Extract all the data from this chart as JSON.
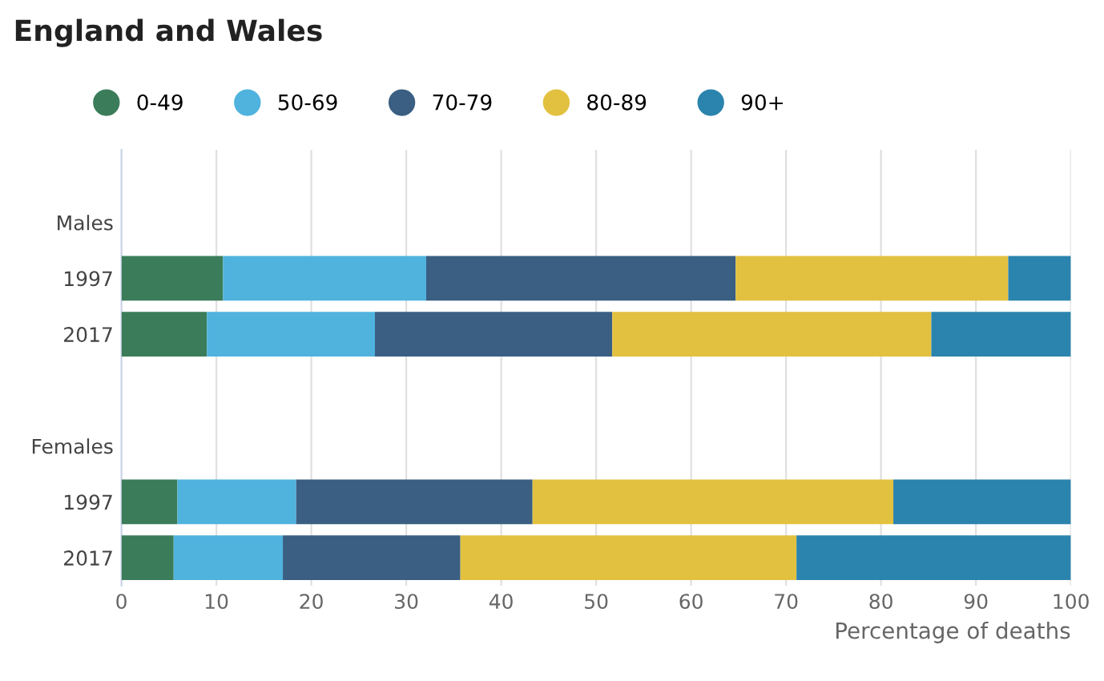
{
  "chart_data": {
    "type": "bar",
    "title": "England and Wales",
    "orientation": "horizontal",
    "stacked": true,
    "categories": [
      "Males",
      "1997",
      "2017",
      null,
      "Females",
      "1997",
      "2017"
    ],
    "series": [
      {
        "name": "0-49",
        "color": "#3b7d5a",
        "values": [
          null,
          10.7,
          9.0,
          null,
          null,
          5.9,
          5.5
        ]
      },
      {
        "name": "50-69",
        "color": "#4fb3de",
        "values": [
          null,
          21.4,
          17.7,
          null,
          null,
          12.5,
          11.5
        ]
      },
      {
        "name": "70-79",
        "color": "#3a5f82",
        "values": [
          null,
          32.6,
          25.0,
          null,
          null,
          24.9,
          18.7
        ]
      },
      {
        "name": "80-89",
        "color": "#e3c140",
        "values": [
          null,
          28.7,
          33.6,
          null,
          null,
          38.0,
          35.4
        ]
      },
      {
        "name": "90+",
        "color": "#2b84ad",
        "values": [
          null,
          6.6,
          14.7,
          null,
          null,
          18.7,
          28.9
        ]
      }
    ],
    "xlabel": "Percentage of deaths",
    "xlim": [
      0,
      100
    ],
    "xticks": [
      0,
      10,
      20,
      30,
      40,
      50,
      60,
      70,
      80,
      90,
      100
    ],
    "grid": "x",
    "legend": "top left"
  }
}
